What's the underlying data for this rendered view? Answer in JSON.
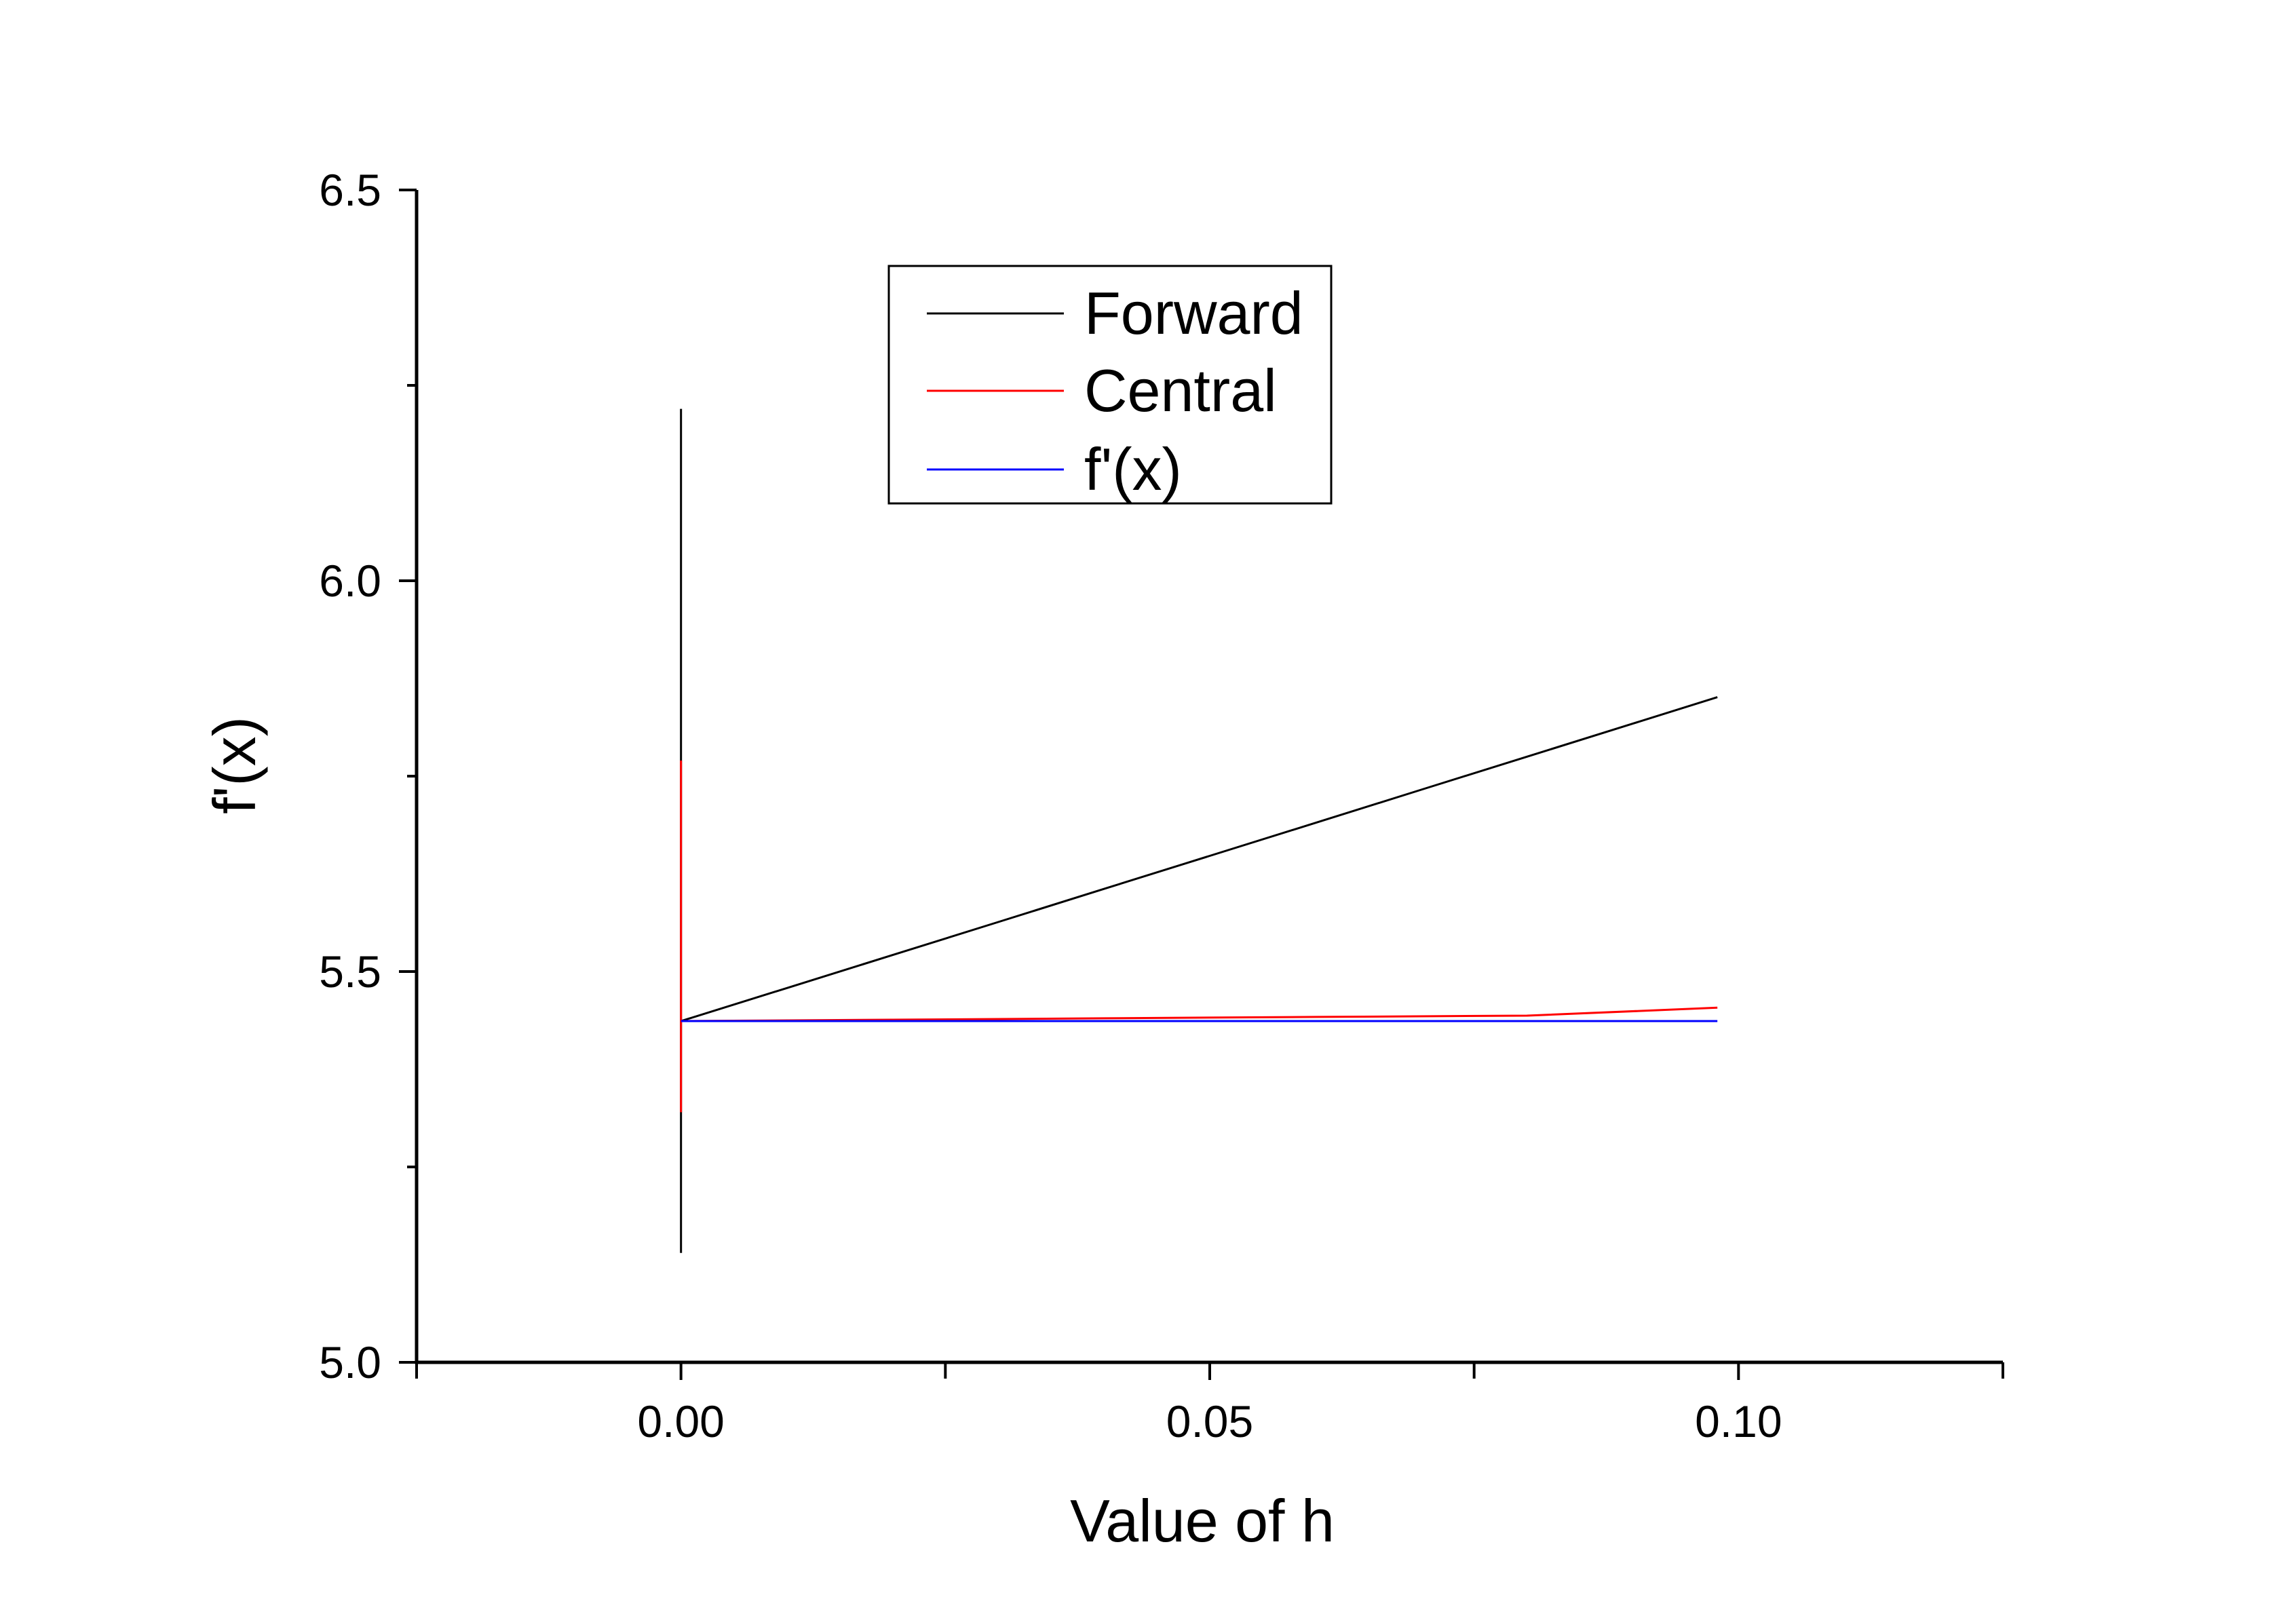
{
  "chart_data": {
    "type": "line",
    "title": "",
    "xlabel": "Value of h",
    "ylabel": "f'(x)",
    "xlim": [
      -0.025,
      0.125
    ],
    "ylim": [
      5.0,
      6.5
    ],
    "x_major_ticks": [
      0.0,
      0.05,
      0.1
    ],
    "x_tick_labels": [
      "0.00",
      "0.05",
      "0.10"
    ],
    "x_minor_ticks": [
      -0.025,
      0.025,
      0.075,
      0.125
    ],
    "y_major_ticks": [
      5.0,
      5.5,
      6.0,
      6.5
    ],
    "y_tick_labels": [
      "5.0",
      "5.5",
      "6.0",
      "6.5"
    ],
    "y_minor_ticks": [
      5.25,
      5.75,
      6.25
    ],
    "grid": false,
    "legend_position": "top-center",
    "series": [
      {
        "name": "Forward",
        "color": "#000000",
        "points": [
          [
            0.0,
            6.22
          ],
          [
            0.0,
            5.14
          ],
          [
            0.0,
            5.3
          ],
          [
            0.0,
            5.4366
          ],
          [
            0.01,
            5.4788
          ],
          [
            0.02,
            5.5211
          ],
          [
            0.03,
            5.5634
          ],
          [
            0.04,
            5.6057
          ],
          [
            0.05,
            5.648
          ],
          [
            0.06,
            5.6903
          ],
          [
            0.07,
            5.7326
          ],
          [
            0.08,
            5.7749
          ],
          [
            0.09,
            5.8172
          ],
          [
            0.098,
            5.851
          ]
        ]
      },
      {
        "name": "Central",
        "color": "#ff0000",
        "points": [
          [
            0.0,
            5.77
          ],
          [
            0.0,
            5.32
          ],
          [
            0.0,
            5.4366
          ],
          [
            0.02,
            5.4384
          ],
          [
            0.04,
            5.4402
          ],
          [
            0.06,
            5.4419
          ],
          [
            0.08,
            5.4436
          ],
          [
            0.098,
            5.4537
          ]
        ]
      },
      {
        "name": "f'(x)",
        "color": "#0000ff",
        "points": [
          [
            0.0,
            5.4366
          ],
          [
            0.098,
            5.4366
          ]
        ]
      }
    ]
  }
}
